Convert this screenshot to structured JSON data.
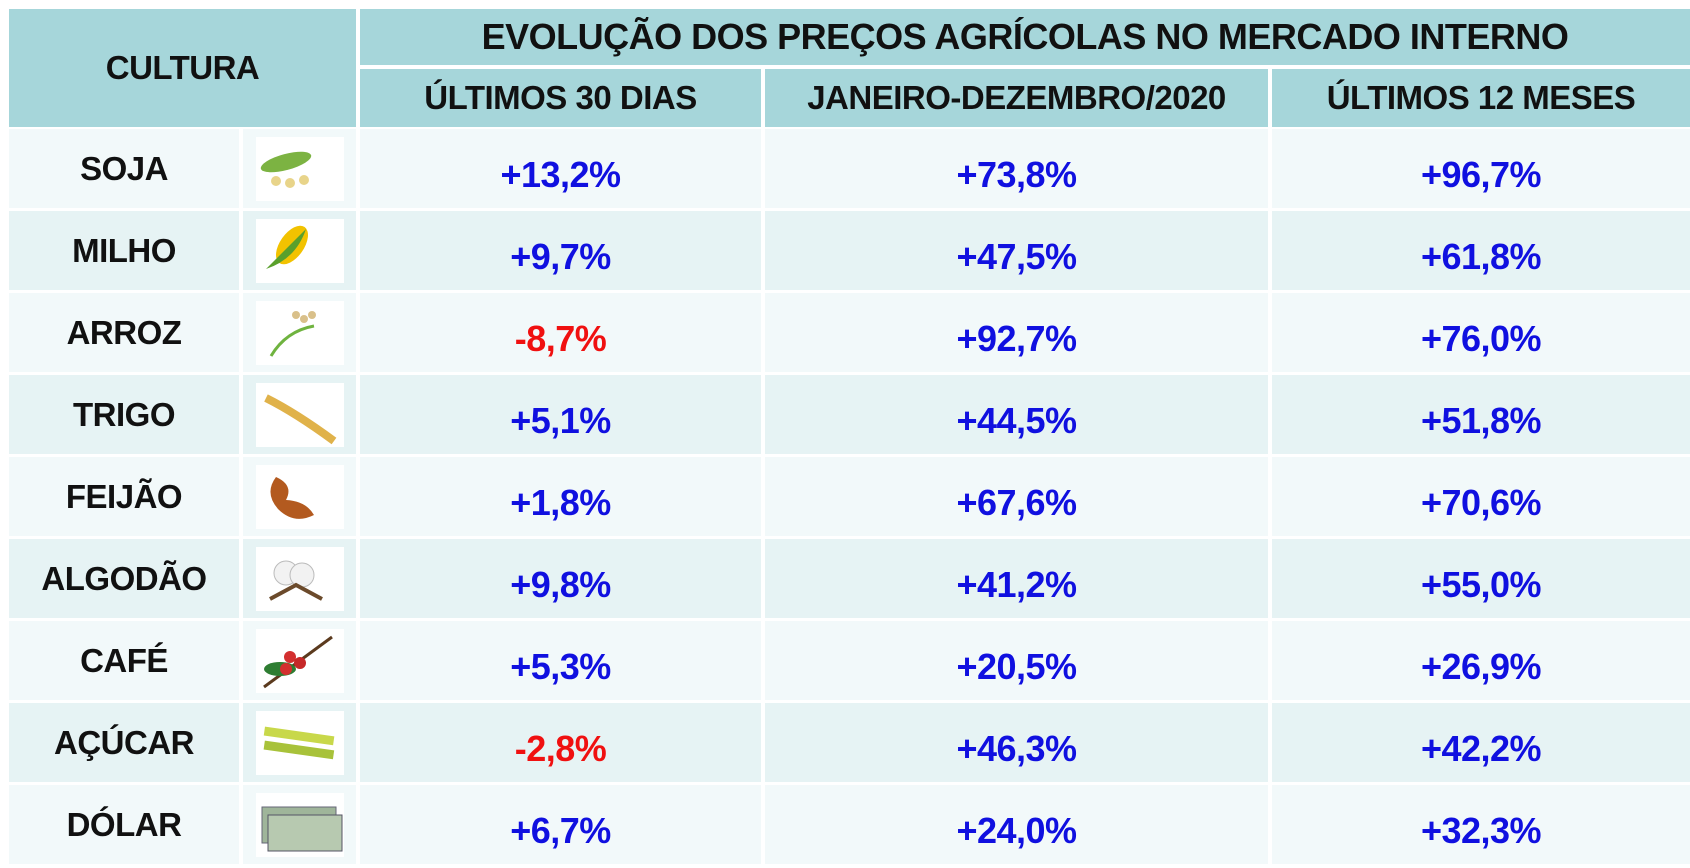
{
  "header": {
    "title": "EVOLUÇÃO DOS PREÇOS AGRÍCOLAS NO MERCADO INTERNO",
    "first_column": "CULTURA",
    "columns": [
      "ÚLTIMOS 30 DIAS",
      "JANEIRO-DEZEMBRO/2020",
      "ÚLTIMOS 12 MESES"
    ]
  },
  "table": {
    "rows": [
      [
        "SOJA",
        "+13,2%",
        "+73,8%",
        "+96,7%"
      ],
      [
        "MILHO",
        "+9,7%",
        "+47,5%",
        "+61,8%"
      ],
      [
        "ARROZ",
        "-8,7%",
        "+92,7%",
        "+76,0%"
      ],
      [
        "TRIGO",
        "+5,1%",
        "+44,5%",
        "+51,8%"
      ],
      [
        "FEIJÃO",
        "+1,8%",
        "+67,6%",
        "+70,6%"
      ],
      [
        "ALGODÃO",
        "+9,8%",
        "+41,2%",
        "+55,0%"
      ],
      [
        "CAFÉ",
        "+5,3%",
        "+20,5%",
        "+26,9%"
      ],
      [
        "AÇÚCAR",
        "-2,8%",
        "+46,3%",
        "+42,2%"
      ],
      [
        "DÓLAR",
        "+6,7%",
        "+24,0%",
        "+32,3%"
      ]
    ]
  }
}
